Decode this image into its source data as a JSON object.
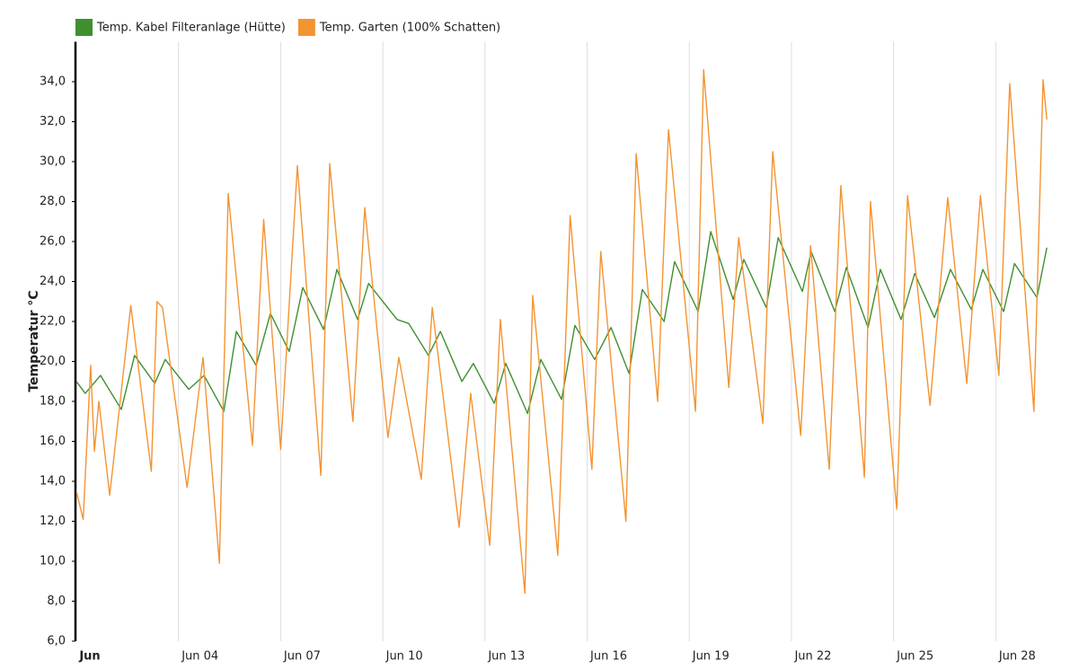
{
  "chart_data": {
    "type": "line",
    "y_label": "Temperatur °C",
    "xlim": [
      1,
      29.6
    ],
    "ylim": [
      6,
      36
    ],
    "grid": true,
    "legend": "top-left",
    "xticks": [
      {
        "value": 1,
        "label": "Jun"
      },
      {
        "value": 4,
        "label": "Jun 04"
      },
      {
        "value": 7,
        "label": "Jun 07"
      },
      {
        "value": 10,
        "label": "Jun 10"
      },
      {
        "value": 13,
        "label": "Jun 13"
      },
      {
        "value": 16,
        "label": "Jun 16"
      },
      {
        "value": 19,
        "label": "Jun 19"
      },
      {
        "value": 22,
        "label": "Jun 22"
      },
      {
        "value": 25,
        "label": "Jun 25"
      },
      {
        "value": 28,
        "label": "Jun 28"
      }
    ],
    "yticks": [
      {
        "value": 6,
        "label": "6,0"
      },
      {
        "value": 8,
        "label": "8,0"
      },
      {
        "value": 10,
        "label": "10,0"
      },
      {
        "value": 12,
        "label": "12,0"
      },
      {
        "value": 14,
        "label": "14,0"
      },
      {
        "value": 16,
        "label": "16,0"
      },
      {
        "value": 18,
        "label": "18,0"
      },
      {
        "value": 20,
        "label": "20,0"
      },
      {
        "value": 22,
        "label": "22,0"
      },
      {
        "value": 24,
        "label": "24,0"
      },
      {
        "value": 26,
        "label": "26,0"
      },
      {
        "value": 28,
        "label": "28,0"
      },
      {
        "value": 30,
        "label": "30,0"
      },
      {
        "value": 32,
        "label": "32,0"
      },
      {
        "value": 34,
        "label": "34,0"
      }
    ],
    "series": [
      {
        "name": "Temp. Kabel Filteranlage (Hütte)",
        "color": "#3f8f2f",
        "x": [
          1,
          1.26,
          1.71,
          2.32,
          2.71,
          3.3,
          3.61,
          4.3,
          4.75,
          5.33,
          5.7,
          6.28,
          6.7,
          7.25,
          7.65,
          8.26,
          8.65,
          9.26,
          9.58,
          10.42,
          10.76,
          11.34,
          11.69,
          12.32,
          12.66,
          13.27,
          13.61,
          14.25,
          14.64,
          15.25,
          15.64,
          16.22,
          16.7,
          17.23,
          17.62,
          18.26,
          18.57,
          19.26,
          19.63,
          20.29,
          20.6,
          21.26,
          21.61,
          22.32,
          22.58,
          23.27,
          23.61,
          24.25,
          24.61,
          25.22,
          25.62,
          26.2,
          26.67,
          27.28,
          27.62,
          28.23,
          28.55,
          29.21,
          29.5
        ],
        "values": [
          19.0,
          18.4,
          19.3,
          17.6,
          20.3,
          18.9,
          20.1,
          18.6,
          19.3,
          17.5,
          21.5,
          19.8,
          22.4,
          20.5,
          23.7,
          21.6,
          24.6,
          22.1,
          23.9,
          22.1,
          21.9,
          20.3,
          21.5,
          19.0,
          19.9,
          17.9,
          19.9,
          17.4,
          20.1,
          18.1,
          21.8,
          20.1,
          21.7,
          19.4,
          23.6,
          22.0,
          25.0,
          22.5,
          26.5,
          23.1,
          25.1,
          22.7,
          26.2,
          23.5,
          25.5,
          22.5,
          24.7,
          21.7,
          24.6,
          22.1,
          24.4,
          22.2,
          24.6,
          22.6,
          24.6,
          22.5,
          24.9,
          23.2,
          25.7
        ]
      },
      {
        "name": "Temp. Garten (100% Schatten)",
        "color": "#f39433",
        "x": [
          1,
          1.2,
          1.42,
          1.53,
          1.66,
          1.98,
          2.6,
          3.2,
          3.37,
          3.53,
          4.25,
          4.72,
          5.2,
          5.46,
          6.17,
          6.5,
          7.0,
          7.49,
          8.18,
          8.44,
          9.12,
          9.47,
          10.15,
          10.47,
          11.13,
          11.45,
          12.24,
          12.58,
          13.14,
          13.45,
          14.17,
          14.4,
          15.14,
          15.5,
          16.14,
          16.4,
          17.14,
          17.44,
          18.07,
          18.39,
          19.18,
          19.42,
          20.16,
          20.45,
          21.16,
          21.45,
          22.27,
          22.56,
          23.11,
          23.45,
          24.14,
          24.32,
          25.09,
          25.41,
          26.07,
          26.59,
          27.15,
          27.55,
          28.09,
          28.41,
          29.12,
          29.39,
          29.5
        ],
        "values": [
          13.5,
          12.1,
          19.8,
          15.5,
          18.0,
          13.3,
          22.8,
          14.5,
          23.0,
          22.7,
          13.7,
          20.2,
          9.9,
          28.4,
          15.8,
          27.1,
          15.6,
          29.8,
          14.3,
          29.9,
          17.0,
          27.7,
          16.2,
          20.2,
          14.1,
          22.7,
          11.7,
          18.4,
          10.8,
          22.1,
          8.4,
          23.3,
          10.3,
          27.3,
          14.6,
          25.5,
          12.0,
          30.4,
          18.0,
          31.6,
          17.5,
          34.6,
          18.7,
          26.2,
          16.9,
          30.5,
          16.3,
          25.8,
          14.6,
          28.8,
          14.2,
          28.0,
          12.6,
          28.3,
          17.8,
          28.2,
          18.9,
          28.3,
          19.3,
          33.9,
          17.5,
          34.1,
          32.1
        ]
      }
    ]
  }
}
